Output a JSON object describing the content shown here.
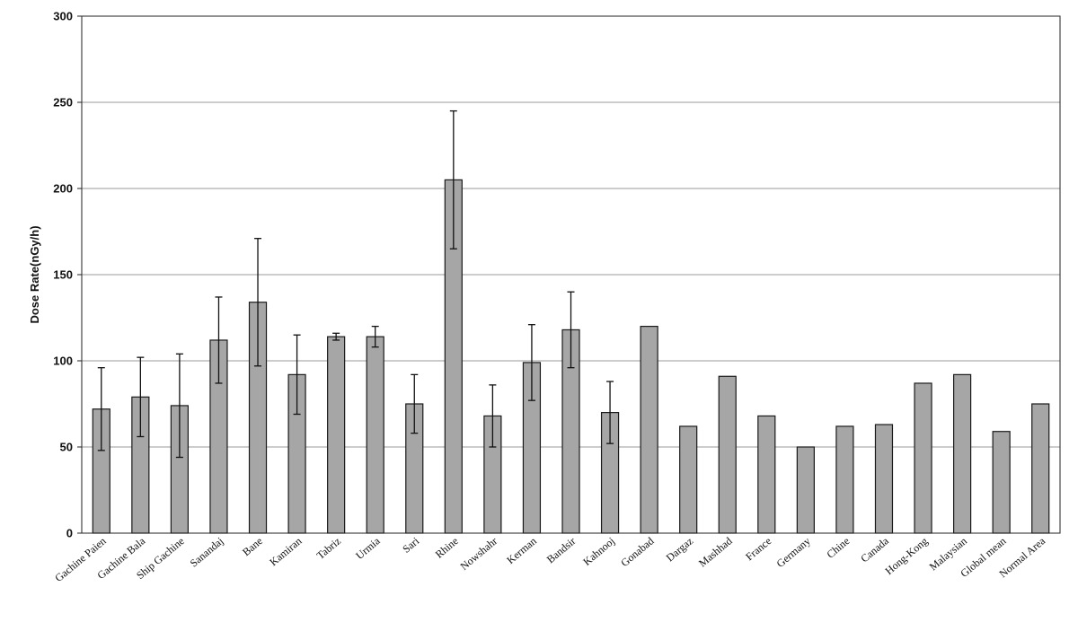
{
  "chart_data": {
    "type": "bar",
    "title": "",
    "xlabel": "",
    "ylabel": "Dose Rate(nGy/h)",
    "ylim": [
      0,
      300
    ],
    "yticks": [
      0,
      50,
      100,
      150,
      200,
      250,
      300
    ],
    "grid": true,
    "bar_color": "#a6a6a6",
    "categories": [
      "Gachine Paien",
      "Gachine Bala",
      "Ship Gachine",
      "Sanandaj",
      "Bane",
      "Kamiran",
      "Tabriz",
      "Urmia",
      "Sari",
      "Rhine",
      "Nowshahr",
      "Kerman",
      "Bandsir",
      "Kahnooj",
      "Gonabad",
      "Dargaz",
      "Mashhad",
      "France",
      "Germany",
      "Chine",
      "Canada",
      "Hong-Kong",
      "Malaysian",
      "Global mean",
      "Normal Area"
    ],
    "values": [
      72,
      79,
      74,
      112,
      134,
      92,
      114,
      114,
      75,
      205,
      68,
      99,
      118,
      70,
      120,
      62,
      91,
      68,
      50,
      62,
      63,
      87,
      92,
      59,
      75
    ],
    "errors": [
      24,
      23,
      30,
      25,
      37,
      23,
      2,
      6,
      17,
      40,
      18,
      22,
      22,
      18,
      null,
      null,
      null,
      null,
      null,
      null,
      null,
      null,
      null,
      null,
      null
    ]
  }
}
